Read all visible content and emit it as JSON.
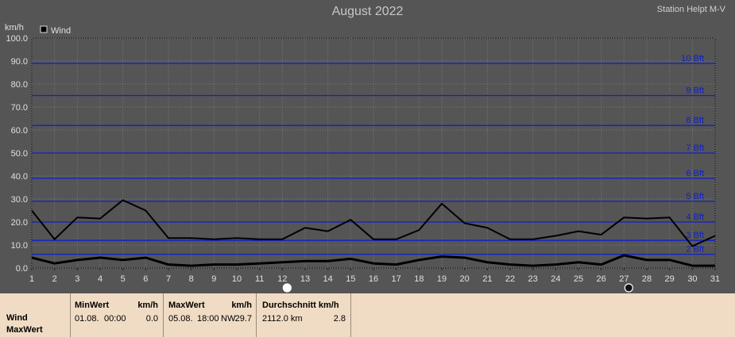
{
  "header": {
    "title": "August 2022",
    "station": "Station Helpt M-V"
  },
  "colors": {
    "background": "#555555",
    "plot_bg": "#555555",
    "beaufort_line": "#1020c8",
    "series": "#000000",
    "footer_bg": "#f0dcc4"
  },
  "chart_data": {
    "type": "line",
    "ylabel": "km/h",
    "ylim": [
      0,
      100
    ],
    "yticks": [
      "0.0",
      "10.0",
      "20.0",
      "30.0",
      "40.0",
      "50.0",
      "60.0",
      "70.0",
      "80.0",
      "90.0",
      "100.0"
    ],
    "x": [
      1,
      2,
      3,
      4,
      5,
      6,
      7,
      8,
      9,
      10,
      11,
      12,
      13,
      14,
      15,
      16,
      17,
      18,
      19,
      20,
      21,
      22,
      23,
      24,
      25,
      26,
      27,
      28,
      29,
      30,
      31
    ],
    "xticks": [
      "1",
      "2",
      "3",
      "4",
      "5",
      "6",
      "7",
      "8",
      "9",
      "10",
      "11",
      "12",
      "13",
      "14",
      "15",
      "16",
      "17",
      "18",
      "19",
      "20",
      "21",
      "22",
      "23",
      "24",
      "25",
      "26",
      "27",
      "28",
      "29",
      "30",
      "31"
    ],
    "legend": "Wind",
    "beaufort": [
      {
        "label": "2 Bft",
        "value": 6
      },
      {
        "label": "3 Bft",
        "value": 12
      },
      {
        "label": "4 Bft",
        "value": 20
      },
      {
        "label": "5 Bft",
        "value": 29
      },
      {
        "label": "6 Bft",
        "value": 39
      },
      {
        "label": "7 Bft",
        "value": 50
      },
      {
        "label": "8 Bft",
        "value": 62
      },
      {
        "label": "9 Bft",
        "value": 75
      },
      {
        "label": "10 Bft",
        "value": 89
      }
    ],
    "series": [
      {
        "values": [
          25,
          12.5,
          22,
          21.5,
          29.5,
          25,
          13,
          13,
          12.5,
          13,
          12.5,
          12.5,
          17.5,
          16,
          21,
          12.5,
          12.5,
          16.5,
          28,
          19.5,
          17.5,
          12.5,
          12.5,
          14,
          16,
          14.5,
          22,
          21.5,
          22,
          9.5,
          14
        ]
      },
      {
        "values": [
          4.5,
          2,
          3.5,
          4.5,
          3.5,
          4.5,
          1.5,
          1,
          1.5,
          1.5,
          2,
          2.5,
          3,
          3,
          4,
          2,
          1.5,
          3.5,
          5,
          4.5,
          2.5,
          1.5,
          1,
          1.5,
          2.5,
          1.5,
          5.5,
          3.5,
          3.5,
          1,
          1
        ]
      }
    ],
    "markers": [
      {
        "x": 12,
        "symbol": "○"
      },
      {
        "x": 27,
        "symbol": "●"
      }
    ]
  },
  "footer": {
    "row_labels": [
      "Wind",
      "MaxWert"
    ],
    "min": {
      "title": "MinWert",
      "unit": "km/h",
      "date": "01.08.",
      "time": "00:00",
      "value": "0.0"
    },
    "max": {
      "title": "MaxWert",
      "unit": "km/h",
      "date": "05.08.",
      "time": "18:00",
      "dir": "NW",
      "value": "29.7"
    },
    "avg": {
      "title": "Durchschnitt km/h",
      "distance": "2112.0 km",
      "value": "2.8"
    }
  }
}
